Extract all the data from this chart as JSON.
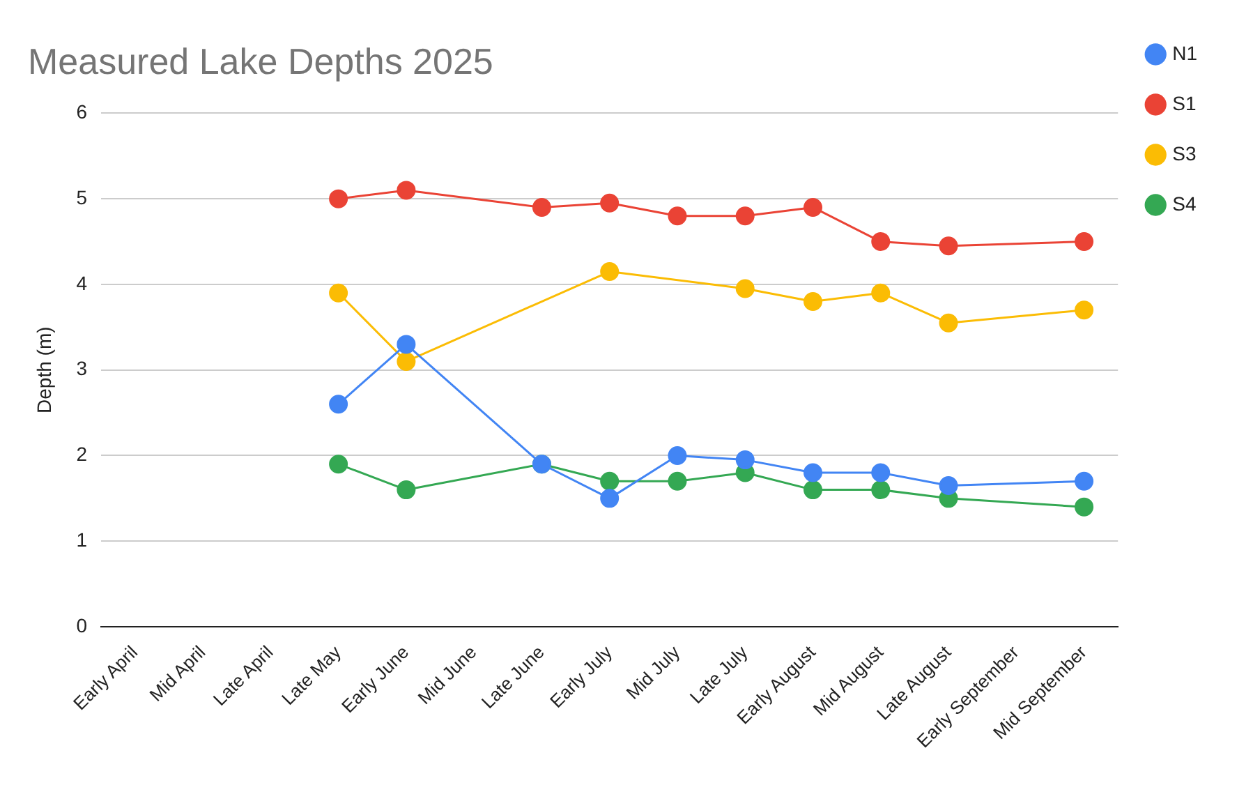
{
  "chart_data": {
    "type": "line",
    "title": "Measured Lake Depths 2025",
    "ylabel": "Depth (m)",
    "categories": [
      "Early April",
      "Mid April",
      "Late April",
      "Late May",
      "Early June",
      "Mid June",
      "Late June",
      "Early July",
      "Mid July",
      "Late July",
      "Early August",
      "Mid August",
      "Late August",
      "Early September",
      "Mid September"
    ],
    "series": [
      {
        "name": "N1",
        "color": "#4285f4",
        "values": [
          null,
          null,
          null,
          2.6,
          3.3,
          null,
          1.9,
          1.5,
          2.0,
          1.95,
          1.8,
          1.8,
          1.65,
          null,
          1.7
        ]
      },
      {
        "name": "S1",
        "color": "#ea4335",
        "values": [
          null,
          null,
          null,
          5.0,
          5.1,
          null,
          4.9,
          4.95,
          4.8,
          4.8,
          4.9,
          4.5,
          4.45,
          null,
          4.5
        ]
      },
      {
        "name": "S3",
        "color": "#fbbc04",
        "values": [
          null,
          null,
          null,
          3.9,
          3.1,
          null,
          null,
          4.15,
          null,
          3.95,
          3.8,
          3.9,
          3.55,
          null,
          3.7
        ]
      },
      {
        "name": "S4",
        "color": "#34a853",
        "values": [
          null,
          null,
          null,
          1.9,
          1.6,
          null,
          1.9,
          1.7,
          1.7,
          1.8,
          1.6,
          1.6,
          1.5,
          null,
          1.4
        ]
      }
    ],
    "ylim": [
      0,
      6
    ],
    "yticks": [
      0,
      1,
      2,
      3,
      4,
      5,
      6
    ],
    "grid": "y",
    "legend": "top right",
    "marker": "circle",
    "line_style": "solid"
  }
}
